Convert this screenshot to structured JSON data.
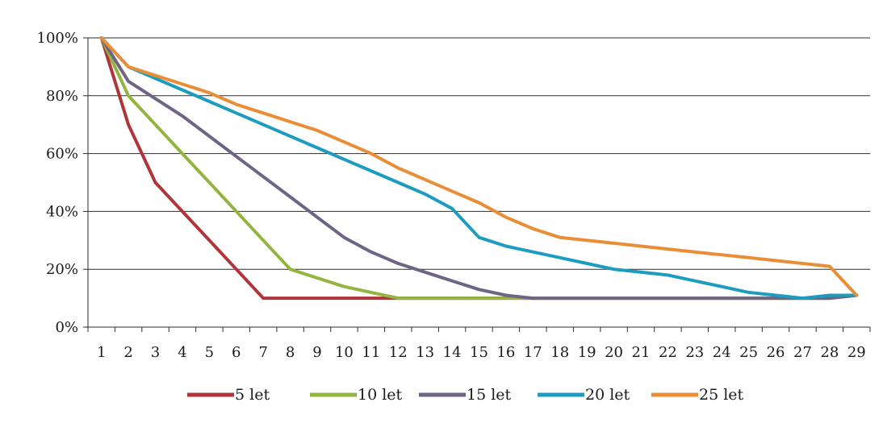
{
  "chart_data": {
    "type": "line",
    "title": "",
    "xlabel": "",
    "ylabel": "",
    "x": [
      1,
      2,
      3,
      4,
      5,
      6,
      7,
      8,
      9,
      10,
      11,
      12,
      13,
      14,
      15,
      16,
      17,
      18,
      19,
      20,
      21,
      22,
      23,
      24,
      25,
      26,
      27,
      28,
      29
    ],
    "x_tick_labels": [
      "1",
      "2",
      "3",
      "4",
      "5",
      "6",
      "7",
      "8",
      "9",
      "10",
      "11",
      "12",
      "13",
      "14",
      "15",
      "16",
      "17",
      "18",
      "19",
      "20",
      "21",
      "22",
      "23",
      "24",
      "25",
      "26",
      "27",
      "28",
      "29"
    ],
    "ylim": [
      0,
      100
    ],
    "y_ticks": [
      0,
      20,
      40,
      60,
      80,
      100
    ],
    "y_tick_labels": [
      "0%",
      "20%",
      "40%",
      "60%",
      "80%",
      "100%"
    ],
    "grid": "horizontal",
    "legend_position": "bottom",
    "series": [
      {
        "name": "5 let",
        "color": "#b0353a",
        "values": [
          100,
          70,
          50,
          40,
          30,
          20,
          10,
          10,
          10,
          10,
          10,
          10,
          10,
          10,
          10,
          10,
          10,
          10,
          10,
          10,
          10,
          10,
          10,
          10,
          10,
          10,
          10,
          10,
          11
        ]
      },
      {
        "name": "10 let",
        "color": "#93b43f",
        "values": [
          100,
          80,
          70,
          60,
          50,
          40,
          30,
          20,
          17,
          14,
          12,
          10,
          10,
          10,
          10,
          10,
          10,
          10,
          10,
          10,
          10,
          10,
          10,
          10,
          10,
          10,
          10,
          10,
          11
        ]
      },
      {
        "name": "15 let",
        "color": "#6e6486",
        "values": [
          100,
          85,
          79,
          73,
          66,
          59,
          52,
          45,
          38,
          31,
          26,
          22,
          19,
          16,
          13,
          11,
          10,
          10,
          10,
          10,
          10,
          10,
          10,
          10,
          10,
          10,
          10,
          10,
          11
        ]
      },
      {
        "name": "20 let",
        "color": "#1c9cbf",
        "values": [
          100,
          90,
          86,
          82,
          78,
          74,
          70,
          66,
          62,
          58,
          54,
          50,
          46,
          41,
          31,
          28,
          26,
          24,
          22,
          20,
          19,
          18,
          16,
          14,
          12,
          11,
          10,
          11,
          11
        ]
      },
      {
        "name": "25 let",
        "color": "#ea8d37",
        "values": [
          100,
          90,
          87,
          84,
          81,
          77,
          74,
          71,
          68,
          64,
          60,
          55,
          51,
          47,
          43,
          38,
          34,
          31,
          30,
          29,
          28,
          27,
          26,
          25,
          24,
          23,
          22,
          21,
          11
        ]
      }
    ]
  }
}
